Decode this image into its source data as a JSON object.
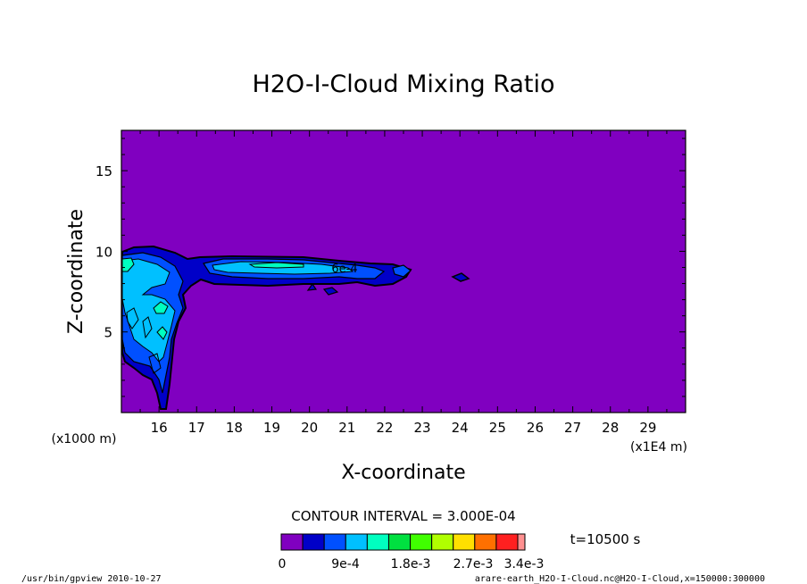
{
  "chart_data": {
    "type": "contour",
    "title": "H2O-I-Cloud Mixing Ratio",
    "xlabel": "X-coordinate",
    "ylabel": "Z-coordinate",
    "x_unit": "(x1E4 m)",
    "y_unit": "(x1000 m)",
    "xlim": [
      15.0,
      30.0
    ],
    "ylim": [
      0.0,
      17.5
    ],
    "x_ticks": [
      "16",
      "17",
      "18",
      "19",
      "20",
      "21",
      "22",
      "23",
      "24",
      "25",
      "26",
      "27",
      "28",
      "29"
    ],
    "x_tick_values": [
      16,
      17,
      18,
      19,
      20,
      21,
      22,
      23,
      24,
      25,
      26,
      27,
      28,
      29
    ],
    "y_ticks": [
      "5",
      "10",
      "15"
    ],
    "y_tick_values": [
      5,
      10,
      15
    ],
    "contour_labels": [
      "6e-4",
      "6e-4"
    ],
    "contour_interval_text": "CONTOUR INTERVAL = 3.000E-04",
    "time_text": "t=10500 s",
    "colorbar": {
      "colors": [
        "#8000c0",
        "#0000c8",
        "#0050ff",
        "#00c0ff",
        "#00ffc0",
        "#00e040",
        "#40ff00",
        "#b0ff00",
        "#ffe000",
        "#ff7000",
        "#ff2020",
        "#ff9090"
      ],
      "tick_labels": [
        "0",
        "9e-4",
        "1.8e-3",
        "2.7e-3",
        "3.4e-3"
      ]
    },
    "background_level_color": "#8000c0"
  },
  "footer": {
    "left": "/usr/bin/gpview  2010-10-27",
    "right": "arare-earth_H2O-I-Cloud.nc@H2O-I-Cloud,x=150000:300000"
  }
}
